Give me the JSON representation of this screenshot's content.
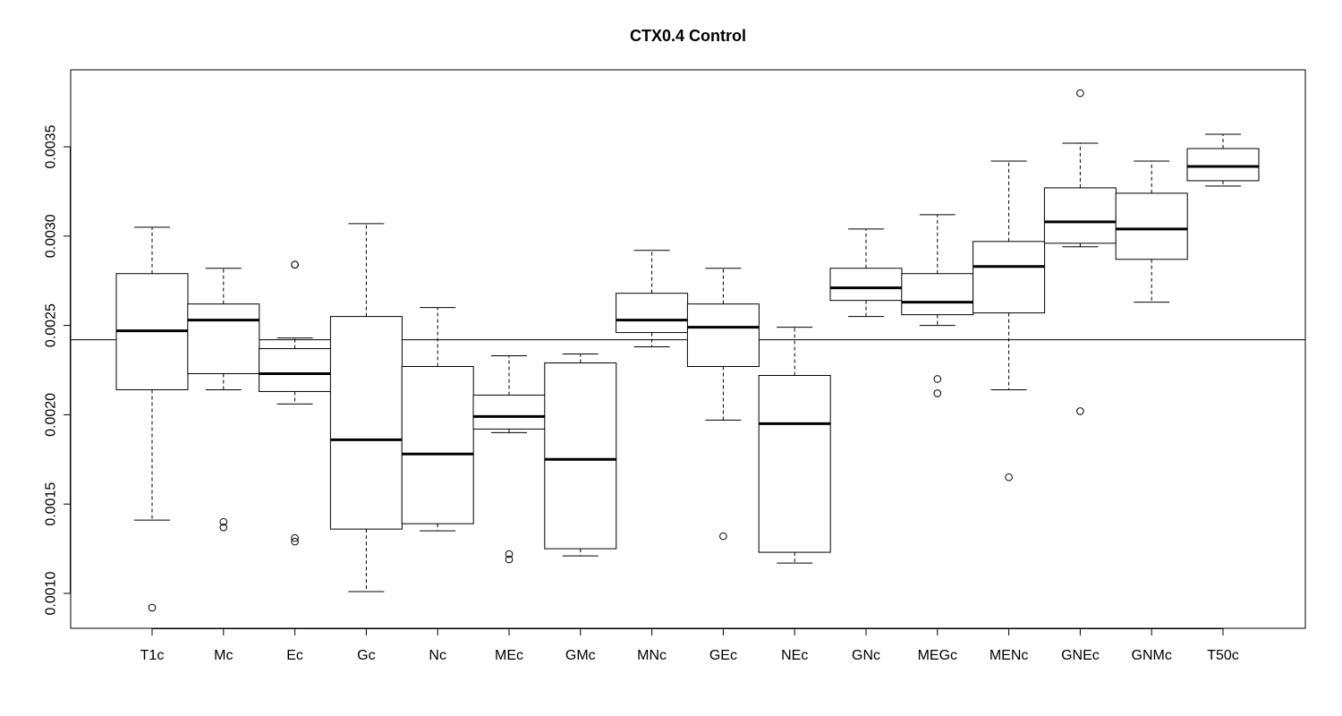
{
  "chart_data": {
    "type": "boxplot",
    "title": "CTX0.4 Control",
    "xlabel": "",
    "ylabel": "",
    "ylim": [
      0.0008,
      0.0039
    ],
    "yticks": [
      0.001,
      0.0015,
      0.002,
      0.0025,
      0.003,
      0.0035
    ],
    "ytick_labels": [
      "0.0010",
      "0.0015",
      "0.0020",
      "0.0025",
      "0.0030",
      "0.0035"
    ],
    "reference_line": 0.00242,
    "grid": false,
    "categories": [
      "T1c",
      "Mc",
      "Ec",
      "Gc",
      "Nc",
      "MEc",
      "GMc",
      "MNc",
      "GEc",
      "NEc",
      "GNc",
      "MEGc",
      "MENc",
      "GNEc",
      "GNMc",
      "T50c"
    ],
    "boxes": [
      {
        "category": "T1c",
        "whisker_low": 0.00141,
        "q1": 0.00214,
        "median": 0.00247,
        "q3": 0.00279,
        "whisker_high": 0.00305,
        "outliers": [
          0.00092
        ]
      },
      {
        "category": "Mc",
        "whisker_low": 0.00214,
        "q1": 0.00223,
        "median": 0.00253,
        "q3": 0.00262,
        "whisker_high": 0.00282,
        "outliers": [
          0.0014,
          0.00137
        ]
      },
      {
        "category": "Ec",
        "whisker_low": 0.00206,
        "q1": 0.00213,
        "median": 0.00223,
        "q3": 0.00237,
        "whisker_high": 0.00243,
        "outliers": [
          0.00284,
          0.00284,
          0.00131,
          0.00129
        ]
      },
      {
        "category": "Gc",
        "whisker_low": 0.00101,
        "q1": 0.00136,
        "median": 0.00186,
        "q3": 0.00255,
        "whisker_high": 0.00307,
        "outliers": []
      },
      {
        "category": "Nc",
        "whisker_low": 0.00135,
        "q1": 0.00139,
        "median": 0.00178,
        "q3": 0.00227,
        "whisker_high": 0.0026,
        "outliers": []
      },
      {
        "category": "MEc",
        "whisker_low": 0.0019,
        "q1": 0.00192,
        "median": 0.00199,
        "q3": 0.00211,
        "whisker_high": 0.00233,
        "outliers": [
          0.00122,
          0.00119
        ]
      },
      {
        "category": "GMc",
        "whisker_low": 0.00121,
        "q1": 0.00125,
        "median": 0.00175,
        "q3": 0.00229,
        "whisker_high": 0.00234,
        "outliers": []
      },
      {
        "category": "MNc",
        "whisker_low": 0.00238,
        "q1": 0.00246,
        "median": 0.00253,
        "q3": 0.00268,
        "whisker_high": 0.00292,
        "outliers": []
      },
      {
        "category": "GEc",
        "whisker_low": 0.00197,
        "q1": 0.00227,
        "median": 0.00249,
        "q3": 0.00262,
        "whisker_high": 0.00282,
        "outliers": [
          0.00132
        ]
      },
      {
        "category": "NEc",
        "whisker_low": 0.00117,
        "q1": 0.00123,
        "median": 0.00195,
        "q3": 0.00222,
        "whisker_high": 0.00249,
        "outliers": []
      },
      {
        "category": "GNc",
        "whisker_low": 0.00255,
        "q1": 0.00264,
        "median": 0.00271,
        "q3": 0.00282,
        "whisker_high": 0.00304,
        "outliers": []
      },
      {
        "category": "MEGc",
        "whisker_low": 0.0025,
        "q1": 0.00256,
        "median": 0.00263,
        "q3": 0.00279,
        "whisker_high": 0.00312,
        "outliers": [
          0.0022,
          0.00212
        ]
      },
      {
        "category": "MENc",
        "whisker_low": 0.00214,
        "q1": 0.00257,
        "median": 0.00283,
        "q3": 0.00297,
        "whisker_high": 0.00342,
        "outliers": [
          0.00165
        ]
      },
      {
        "category": "GNEc",
        "whisker_low": 0.00294,
        "q1": 0.00296,
        "median": 0.00308,
        "q3": 0.00327,
        "whisker_high": 0.00352,
        "outliers": [
          0.0038,
          0.00202
        ]
      },
      {
        "category": "GNMc",
        "whisker_low": 0.00263,
        "q1": 0.00287,
        "median": 0.00304,
        "q3": 0.00324,
        "whisker_high": 0.00342,
        "outliers": []
      },
      {
        "category": "T50c",
        "whisker_low": 0.00328,
        "q1": 0.00331,
        "median": 0.00339,
        "q3": 0.00349,
        "whisker_high": 0.00357,
        "outliers": []
      }
    ]
  }
}
